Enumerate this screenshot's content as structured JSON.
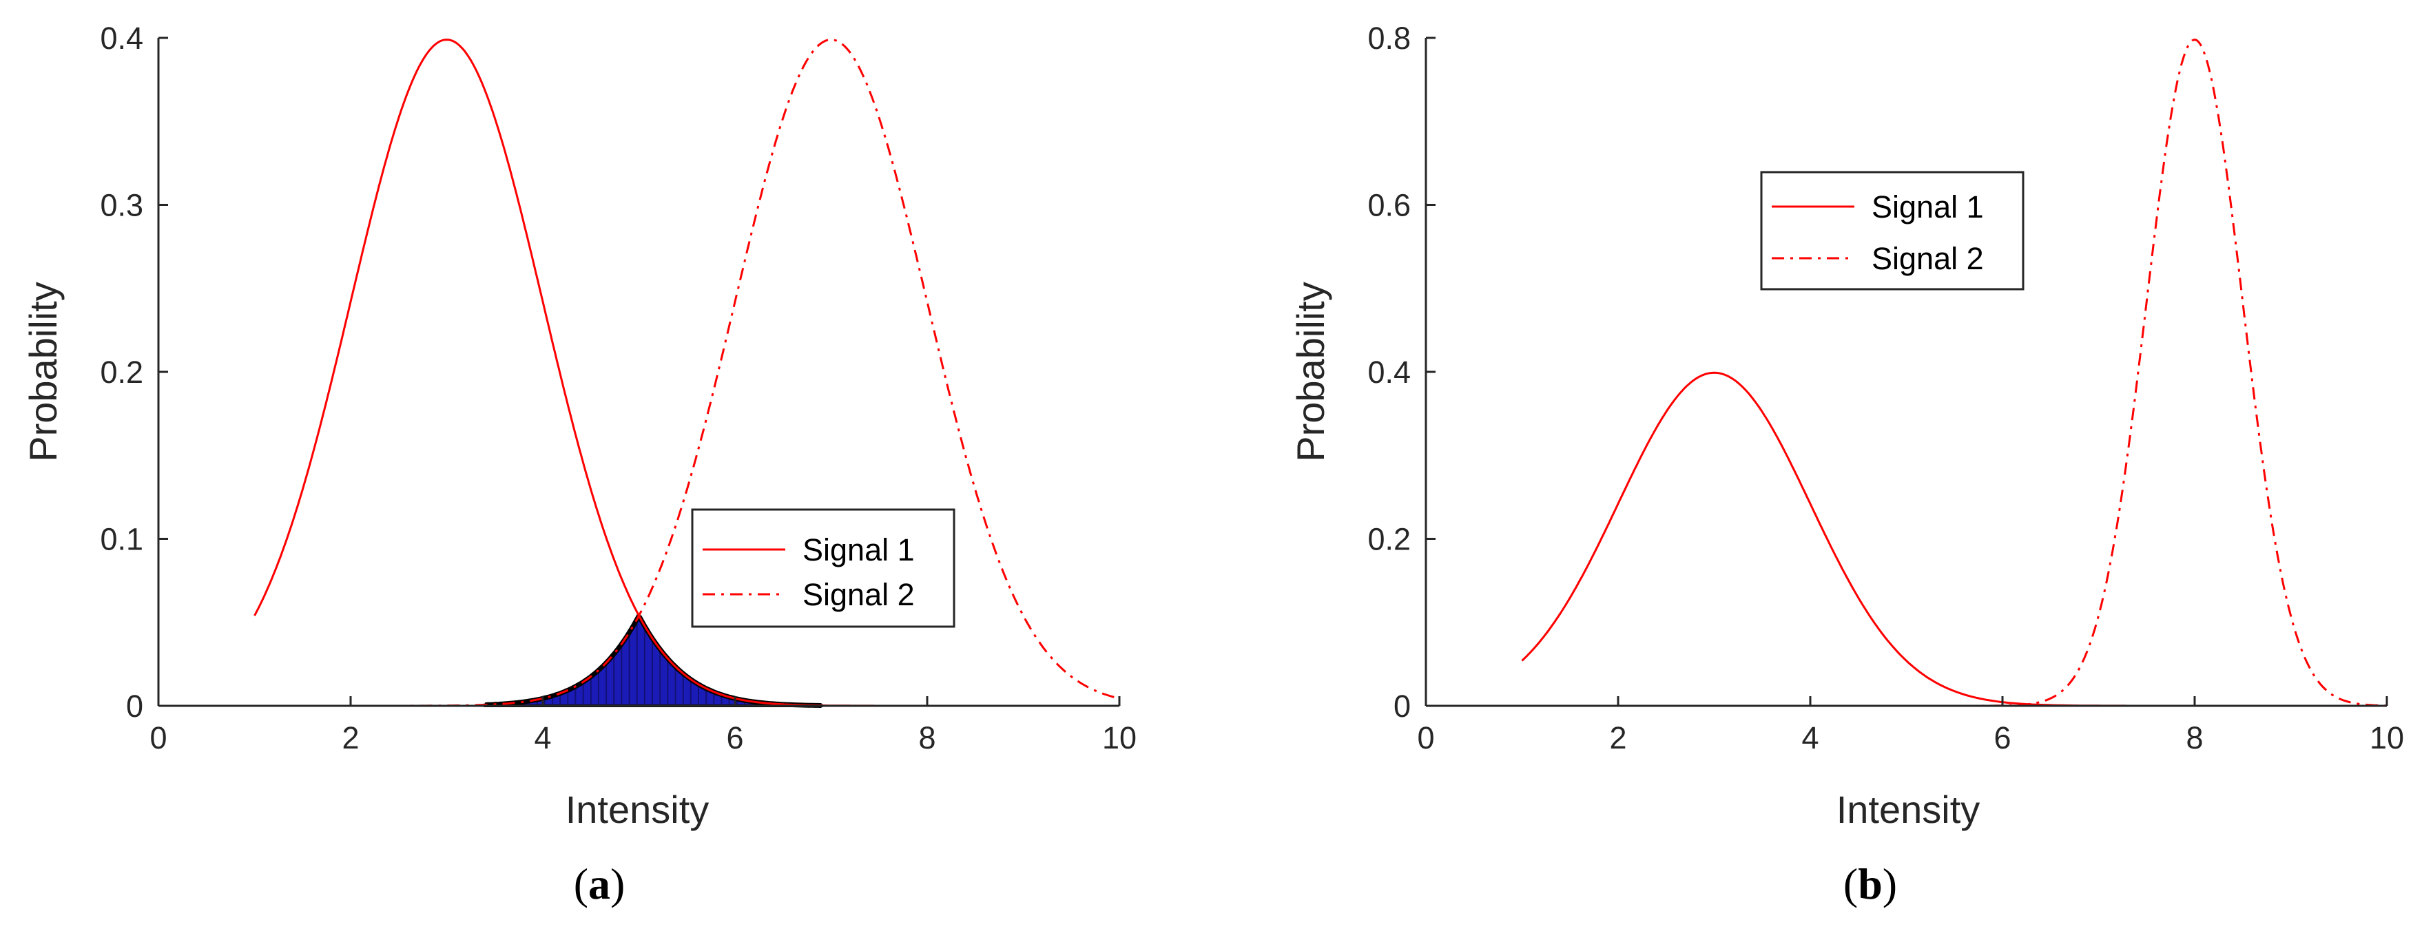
{
  "chart_data": [
    {
      "type": "line",
      "panel_label": "a",
      "xlabel": "Intensity",
      "ylabel": "Probability",
      "xlim": [
        0,
        10
      ],
      "ylim": [
        0,
        0.4
      ],
      "xticks": [
        "0",
        "2",
        "4",
        "6",
        "8",
        "10"
      ],
      "yticks": [
        "0",
        "0.1",
        "0.2",
        "0.3",
        "0.4"
      ],
      "legend": {
        "position": "center-right"
      },
      "series": [
        {
          "name": "Signal 1",
          "style": "solid",
          "color": "#ff0000",
          "distribution": "normal",
          "mean": 3,
          "sd": 1,
          "x_range": [
            1,
            10
          ]
        },
        {
          "name": "Signal 2",
          "style": "dash-dot",
          "color": "#ff0000",
          "distribution": "normal",
          "mean": 7,
          "sd": 1,
          "x_range": [
            1,
            10
          ]
        }
      ],
      "shaded_overlap": {
        "x_range": [
          3.4,
          6.9
        ],
        "peak_x": 5,
        "peak_y": 0.054,
        "fill": "#1b1bb8",
        "edge": "#000000"
      }
    },
    {
      "type": "line",
      "panel_label": "b",
      "xlabel": "Intensity",
      "ylabel": "Probability",
      "xlim": [
        0,
        10
      ],
      "ylim": [
        0,
        0.8
      ],
      "xticks": [
        "0",
        "2",
        "4",
        "6",
        "8",
        "10"
      ],
      "yticks": [
        "0",
        "0.2",
        "0.4",
        "0.6",
        "0.8"
      ],
      "legend": {
        "position": "top-center"
      },
      "series": [
        {
          "name": "Signal 1",
          "style": "solid",
          "color": "#ff0000",
          "distribution": "normal",
          "mean": 3,
          "sd": 1,
          "x_range": [
            1,
            10
          ]
        },
        {
          "name": "Signal 2",
          "style": "dash-dot",
          "color": "#ff0000",
          "distribution": "normal",
          "mean": 8,
          "sd": 0.5,
          "x_range": [
            1,
            10
          ]
        }
      ]
    }
  ]
}
